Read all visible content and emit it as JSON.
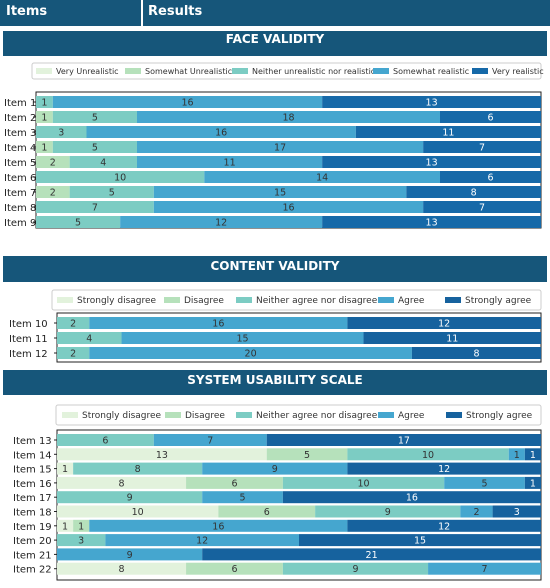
{
  "header": {
    "col1": "Items",
    "col2": "Results"
  },
  "colors": {
    "header_bg": "#16567a",
    "seg": [
      "#e2f2dc",
      "#b6e1bb",
      "#7cccc3",
      "#45a6cf",
      "#16629e"
    ],
    "fv_very_realistic": "#1669a8"
  },
  "chart_data": [
    {
      "type": "bar",
      "orientation": "horizontal",
      "stacked": true,
      "title": "FACE VALIDITY",
      "legend": {
        "placement": "top",
        "labels": [
          "Very Unrealistic",
          "Somewhat Unrealistic",
          "Neither unrealistic nor realistic",
          "Somewhat realistic",
          "Very realistic"
        ]
      },
      "categories": [
        "Item 1",
        "Item 2",
        "Item 3",
        "Item 4",
        "Item 5",
        "Item 6",
        "Item 7",
        "Item 8",
        "Item 9"
      ],
      "values": [
        [
          0,
          0,
          1,
          16,
          13
        ],
        [
          0,
          1,
          5,
          18,
          6
        ],
        [
          0,
          0,
          3,
          16,
          11
        ],
        [
          0,
          1,
          5,
          17,
          7
        ],
        [
          0,
          2,
          4,
          11,
          13
        ],
        [
          0,
          0,
          10,
          14,
          6
        ],
        [
          0,
          2,
          5,
          15,
          8
        ],
        [
          0,
          0,
          7,
          16,
          7
        ],
        [
          0,
          0,
          5,
          12,
          13
        ]
      ],
      "xlim": [
        0,
        30
      ]
    },
    {
      "type": "bar",
      "orientation": "horizontal",
      "stacked": true,
      "title": "CONTENT VALIDITY",
      "legend": {
        "placement": "top",
        "labels": [
          "Strongly disagree",
          "Disagree",
          "Neither agree nor disagree",
          "Agree",
          "Strongly agree"
        ]
      },
      "categories": [
        "Item 10",
        "Item 11",
        "Item 12"
      ],
      "values": [
        [
          0,
          0,
          2,
          16,
          12
        ],
        [
          0,
          0,
          4,
          15,
          11
        ],
        [
          0,
          0,
          2,
          20,
          8
        ]
      ],
      "xlim": [
        0,
        30
      ]
    },
    {
      "type": "bar",
      "orientation": "horizontal",
      "stacked": true,
      "title": "SYSTEM USABILITY SCALE",
      "legend": {
        "placement": "top",
        "labels": [
          "Strongly disagree",
          "Disagree",
          "Neither agree nor disagree",
          "Agree",
          "Strongly agree"
        ]
      },
      "categories": [
        "Item 13",
        "Item 14",
        "Item 15",
        "Item 16",
        "Item 17",
        "Item 18",
        "Item 19",
        "Item 20",
        "Item 21",
        "Item 22"
      ],
      "values": [
        [
          0,
          0,
          6,
          7,
          17
        ],
        [
          13,
          5,
          10,
          1,
          1
        ],
        [
          1,
          0,
          8,
          9,
          12
        ],
        [
          8,
          6,
          10,
          5,
          1
        ],
        [
          0,
          0,
          9,
          5,
          16
        ],
        [
          10,
          6,
          9,
          2,
          3
        ],
        [
          1,
          1,
          0,
          16,
          12
        ],
        [
          0,
          0,
          3,
          12,
          15
        ],
        [
          0,
          0,
          0,
          9,
          21
        ],
        [
          8,
          6,
          9,
          7,
          0
        ]
      ],
      "xlim": [
        0,
        30
      ]
    }
  ]
}
